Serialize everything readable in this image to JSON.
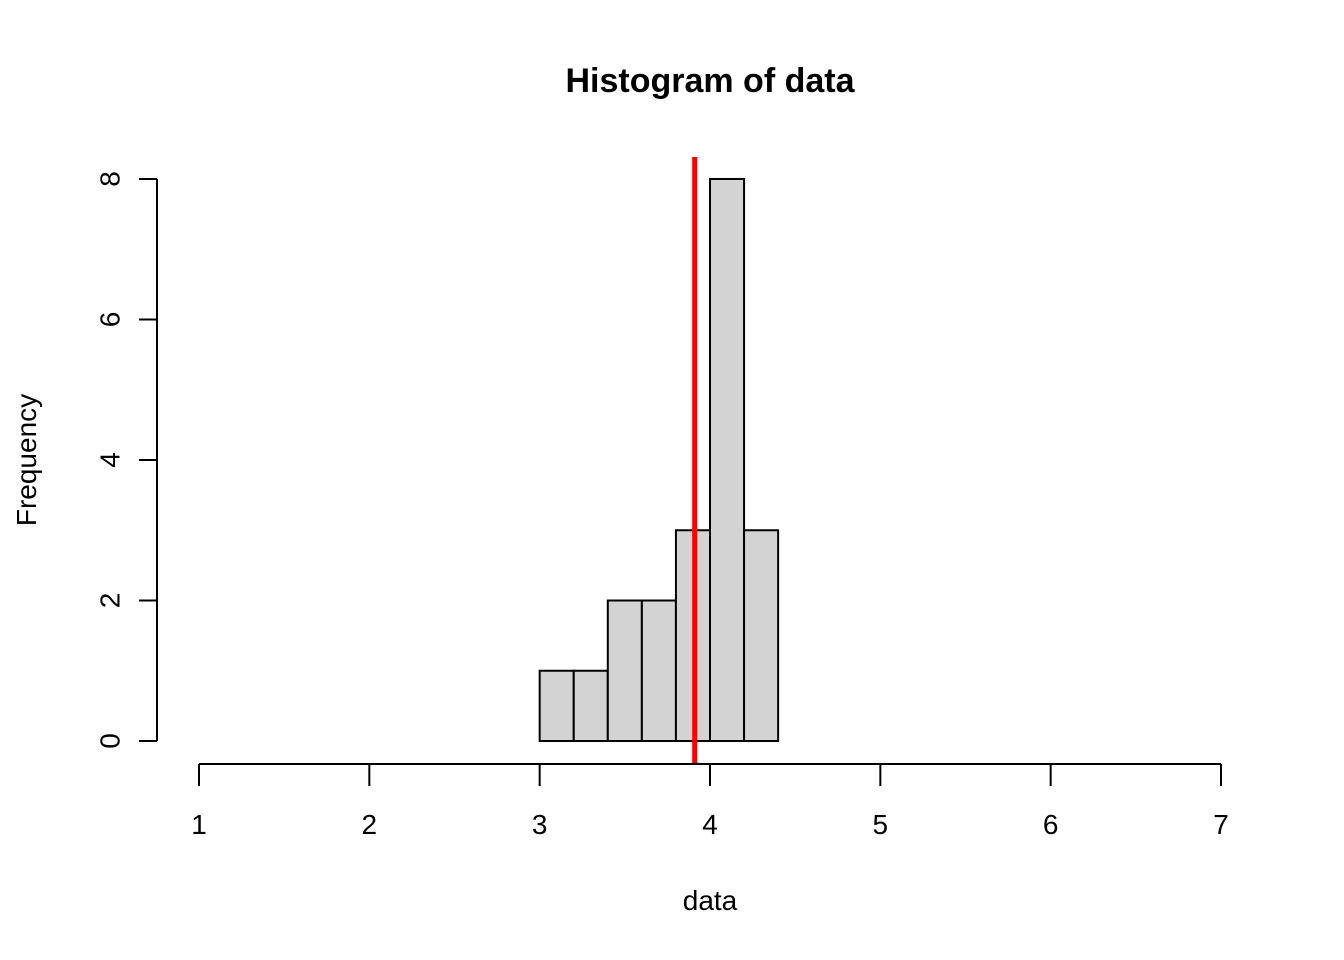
{
  "chart_data": {
    "type": "bar",
    "title": "Histogram of data",
    "xlabel": "data",
    "ylabel": "Frequency",
    "xlim": [
      1,
      7
    ],
    "ylim": [
      0,
      8
    ],
    "x_ticks": [
      1,
      2,
      3,
      4,
      5,
      6,
      7
    ],
    "y_ticks": [
      0,
      2,
      4,
      6,
      8
    ],
    "bins": [
      {
        "start": 3.0,
        "end": 3.2,
        "count": 1
      },
      {
        "start": 3.2,
        "end": 3.4,
        "count": 1
      },
      {
        "start": 3.4,
        "end": 3.6,
        "count": 2
      },
      {
        "start": 3.6,
        "end": 3.8,
        "count": 2
      },
      {
        "start": 3.8,
        "end": 4.0,
        "count": 3
      },
      {
        "start": 4.0,
        "end": 4.2,
        "count": 8
      },
      {
        "start": 4.2,
        "end": 4.4,
        "count": 3
      }
    ],
    "reference_line": {
      "x": 3.91,
      "color": "#ff0000"
    },
    "bar_fill": "#d3d3d3",
    "grid": false
  }
}
